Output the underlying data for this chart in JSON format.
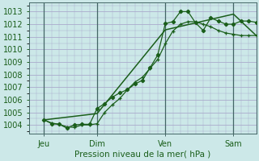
{
  "background_color": "#cce8e8",
  "plot_bg_color": "#cce8e8",
  "grid_color_major": "#aaaacc",
  "grid_color_minor": "#bbccdd",
  "line_color": "#1a5e1a",
  "xlabel": "Pression niveau de la mer( hPa )",
  "ylim": [
    1003.3,
    1013.7
  ],
  "yticks": [
    1004,
    1005,
    1006,
    1007,
    1008,
    1009,
    1010,
    1011,
    1012,
    1013
  ],
  "xtick_labels": [
    "Jeu",
    "Dim",
    "Ven",
    "Sam"
  ],
  "xtick_positions": [
    8,
    36,
    72,
    108
  ],
  "xlim": [
    0,
    120
  ],
  "vline_positions": [
    8,
    36,
    72,
    108
  ],
  "line1_x": [
    8,
    12,
    16,
    20,
    24,
    28,
    32,
    36,
    40,
    44,
    48,
    52,
    56,
    60,
    64,
    68,
    72,
    76,
    80,
    84,
    88,
    92,
    96,
    100,
    104,
    108,
    112,
    116,
    120
  ],
  "line1_y": [
    1004.4,
    1004.15,
    1004.05,
    1003.85,
    1003.8,
    1004.0,
    1004.0,
    1004.1,
    1005.0,
    1005.6,
    1006.1,
    1006.8,
    1007.4,
    1007.8,
    1008.5,
    1009.2,
    1010.45,
    1011.45,
    1012.0,
    1012.2,
    1012.2,
    1012.0,
    1011.8,
    1011.5,
    1011.3,
    1011.2,
    1011.1,
    1011.1,
    1011.1
  ],
  "line2_x": [
    8,
    12,
    16,
    20,
    24,
    28,
    32,
    36,
    40,
    44,
    48,
    52,
    56,
    60,
    64,
    68,
    72,
    76,
    80,
    84,
    88,
    92,
    96,
    100,
    104,
    108,
    112,
    116,
    120
  ],
  "line2_y": [
    1004.4,
    1004.1,
    1004.05,
    1003.75,
    1004.0,
    1004.05,
    1004.05,
    1005.3,
    1005.7,
    1006.2,
    1006.55,
    1006.8,
    1007.25,
    1007.55,
    1008.55,
    1009.55,
    1012.05,
    1012.2,
    1013.0,
    1013.0,
    1012.1,
    1011.5,
    1012.5,
    1012.25,
    1012.0,
    1012.0,
    1012.25,
    1012.25,
    1012.15
  ],
  "line3_x": [
    8,
    36,
    72,
    108,
    120
  ],
  "line3_y": [
    1004.4,
    1004.9,
    1011.55,
    1012.8,
    1011.1
  ]
}
